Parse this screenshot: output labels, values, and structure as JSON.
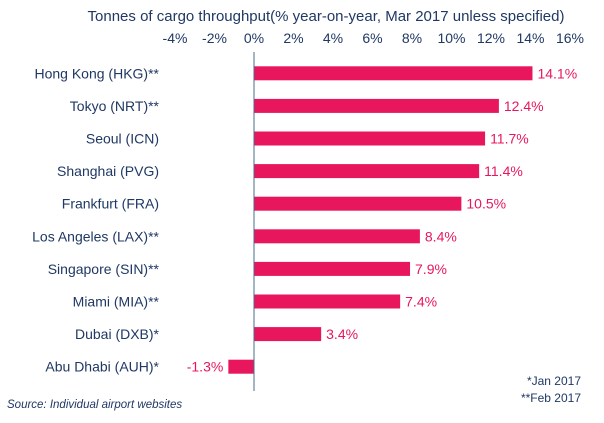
{
  "colors": {
    "bar": "#E8175D",
    "text": "#1F3864",
    "axis": "#4A6B8A"
  },
  "chart_data": {
    "type": "bar",
    "orientation": "horizontal",
    "title": "Tonnes of cargo throughput(% year-on-year, Mar 2017 unless specified)",
    "xlim": [
      -4,
      16
    ],
    "ticks": [
      -4,
      -2,
      0,
      2,
      4,
      6,
      8,
      10,
      12,
      14,
      16
    ],
    "tick_labels": [
      "-4%",
      "-2%",
      "0%",
      "2%",
      "4%",
      "6%",
      "8%",
      "10%",
      "12%",
      "14%",
      "16%"
    ],
    "categories": [
      "Hong Kong (HKG)**",
      "Tokyo (NRT)**",
      "Seoul (ICN)",
      "Shanghai (PVG)",
      "Frankfurt (FRA)",
      "Los Angeles (LAX)**",
      "Singapore (SIN)**",
      "Miami (MIA)**",
      "Dubai (DXB)*",
      "Abu Dhabi (AUH)*"
    ],
    "values": [
      14.1,
      12.4,
      11.7,
      11.4,
      10.5,
      8.4,
      7.9,
      7.4,
      3.4,
      -1.3
    ],
    "value_labels": [
      "14.1%",
      "12.4%",
      "11.7%",
      "11.4%",
      "10.5%",
      "8.4%",
      "7.9%",
      "7.4%",
      "3.4%",
      "-1.3%"
    ],
    "footnotes": [
      "*Jan 2017",
      "**Feb 2017"
    ],
    "source": "Source: Individual airport websites"
  }
}
